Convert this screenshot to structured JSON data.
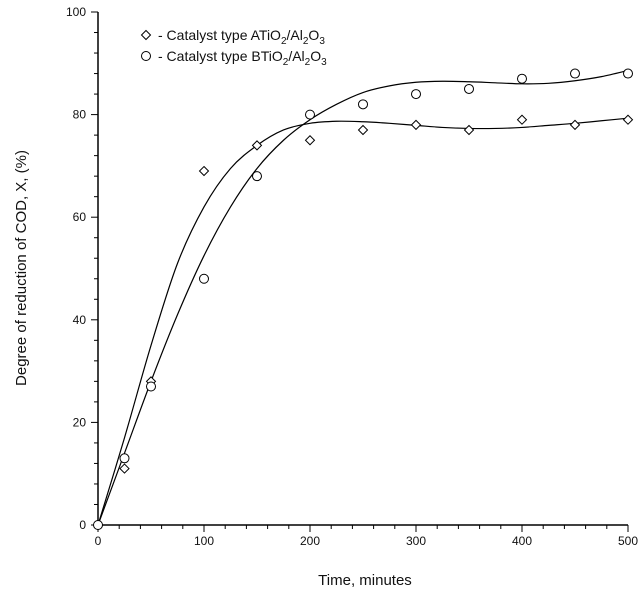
{
  "chart_data": {
    "type": "scatter",
    "xlabel": "Time, minutes",
    "ylabel": "Degree of reduction of COD, X, (%)",
    "xlim": [
      0,
      500
    ],
    "ylim": [
      0,
      100
    ],
    "x_ticks": [
      0,
      100,
      200,
      300,
      400,
      500
    ],
    "y_ticks": [
      0,
      20,
      40,
      60,
      80,
      100
    ],
    "grid": false,
    "legend_position": "top-left",
    "series": [
      {
        "name": "Catalyst type ATiO2/Al2O3",
        "legend_prefix": "- Catalyst type A",
        "legend_formula": [
          "TiO",
          "2",
          "/Al",
          "2",
          "O",
          "3"
        ],
        "marker": "diamond",
        "points": [
          {
            "x": 0,
            "y": 0
          },
          {
            "x": 25,
            "y": 11
          },
          {
            "x": 50,
            "y": 28
          },
          {
            "x": 100,
            "y": 69
          },
          {
            "x": 150,
            "y": 74
          },
          {
            "x": 200,
            "y": 75
          },
          {
            "x": 250,
            "y": 77
          },
          {
            "x": 300,
            "y": 78
          },
          {
            "x": 350,
            "y": 77
          },
          {
            "x": 400,
            "y": 79
          },
          {
            "x": 450,
            "y": 78
          },
          {
            "x": 500,
            "y": 79
          }
        ],
        "fit_curve": [
          [
            0,
            0
          ],
          [
            25,
            17
          ],
          [
            50,
            35
          ],
          [
            75,
            51
          ],
          [
            100,
            62
          ],
          [
            125,
            69.5
          ],
          [
            150,
            74
          ],
          [
            175,
            77
          ],
          [
            200,
            78.3
          ],
          [
            225,
            78.7
          ],
          [
            250,
            78.6
          ],
          [
            275,
            78.3
          ],
          [
            300,
            77.9
          ],
          [
            325,
            77.5
          ],
          [
            350,
            77.3
          ],
          [
            375,
            77.3
          ],
          [
            400,
            77.5
          ],
          [
            425,
            77.9
          ],
          [
            450,
            78.3
          ],
          [
            475,
            78.8
          ],
          [
            500,
            79.3
          ]
        ]
      },
      {
        "name": "Catalyst type BTiO2/Al2O3",
        "legend_prefix": "- Catalyst type B",
        "legend_formula": [
          "TiO",
          "2",
          "/Al",
          "2",
          "O",
          "3"
        ],
        "marker": "circle",
        "points": [
          {
            "x": 0,
            "y": 0
          },
          {
            "x": 25,
            "y": 13
          },
          {
            "x": 50,
            "y": 27
          },
          {
            "x": 100,
            "y": 48
          },
          {
            "x": 150,
            "y": 68
          },
          {
            "x": 200,
            "y": 80
          },
          {
            "x": 250,
            "y": 82
          },
          {
            "x": 300,
            "y": 84
          },
          {
            "x": 350,
            "y": 85
          },
          {
            "x": 400,
            "y": 87
          },
          {
            "x": 450,
            "y": 88
          },
          {
            "x": 500,
            "y": 88
          }
        ],
        "fit_curve": [
          [
            0,
            0
          ],
          [
            25,
            14
          ],
          [
            50,
            28
          ],
          [
            75,
            41
          ],
          [
            100,
            52.5
          ],
          [
            125,
            62
          ],
          [
            150,
            69.5
          ],
          [
            175,
            75
          ],
          [
            200,
            79
          ],
          [
            225,
            82
          ],
          [
            250,
            84.3
          ],
          [
            275,
            85.6
          ],
          [
            300,
            86.3
          ],
          [
            325,
            86.5
          ],
          [
            350,
            86.4
          ],
          [
            375,
            86.2
          ],
          [
            400,
            86
          ],
          [
            425,
            86.1
          ],
          [
            450,
            86.6
          ],
          [
            475,
            87.4
          ],
          [
            500,
            88.6
          ]
        ]
      }
    ]
  }
}
